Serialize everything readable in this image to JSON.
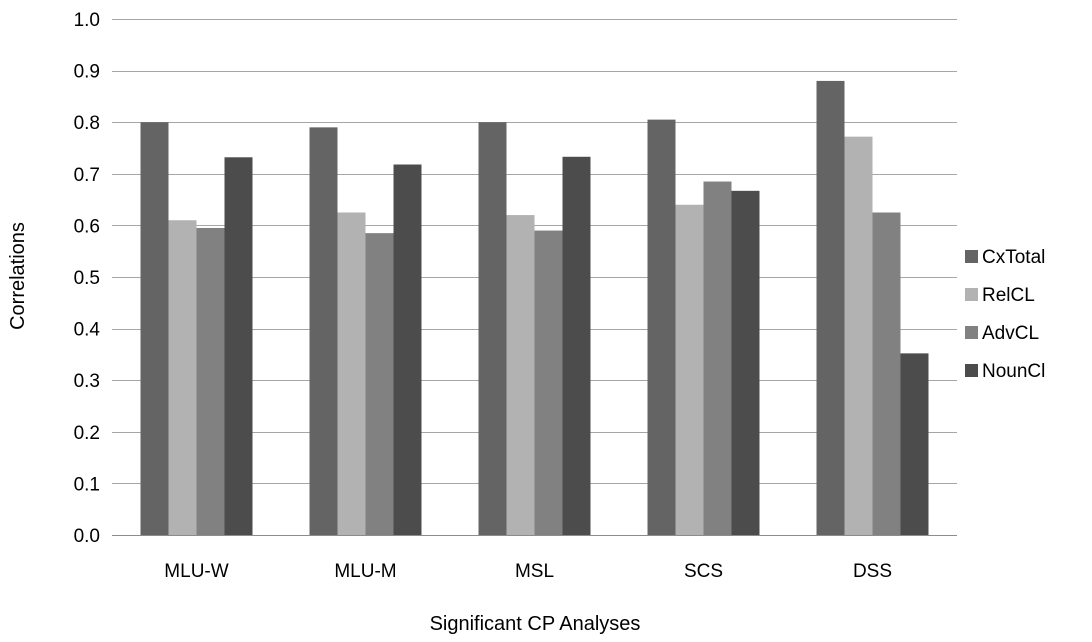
{
  "chart_data": {
    "type": "bar",
    "title": "",
    "xlabel": "Significant CP Analyses",
    "ylabel": "Correlations",
    "ylim": [
      0,
      1.0
    ],
    "yticks": [
      "0.0",
      "0.1",
      "0.2",
      "0.3",
      "0.4",
      "0.5",
      "0.6",
      "0.7",
      "0.8",
      "0.9",
      "1.0"
    ],
    "grid": "horizontal",
    "legend_position": "right",
    "categories": [
      "MLU-W",
      "MLU-M",
      "MSL",
      "SCS",
      "DSS"
    ],
    "series": [
      {
        "name": "CxTotal",
        "color": "#646464",
        "values": [
          0.8,
          0.79,
          0.8,
          0.805,
          0.88
        ]
      },
      {
        "name": "RelCL",
        "color": "#b2b2b2",
        "values": [
          0.61,
          0.625,
          0.62,
          0.64,
          0.772
        ]
      },
      {
        "name": "AdvCL",
        "color": "#818181",
        "values": [
          0.595,
          0.585,
          0.59,
          0.685,
          0.625
        ]
      },
      {
        "name": "NounCl",
        "color": "#4c4c4c",
        "values": [
          0.732,
          0.718,
          0.733,
          0.667,
          0.352
        ]
      }
    ]
  }
}
